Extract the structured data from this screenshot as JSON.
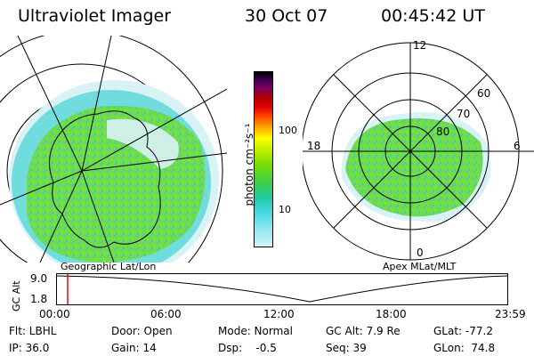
{
  "header": {
    "title": "Ultraviolet Imager",
    "date": "30 Oct 07",
    "time": "00:45:42 UT"
  },
  "left_panel": {
    "label": "Geographic Lat/Lon"
  },
  "right_panel": {
    "label": "Apex MLat/MLT",
    "mlt_labels": [
      "12",
      "6",
      "0",
      "18"
    ],
    "mlat_labels": [
      "60",
      "70",
      "80"
    ]
  },
  "colorbar": {
    "unit_label": "photon cm⁻²s⁻¹",
    "ticks": [
      "100",
      "10"
    ],
    "colors": [
      "#000000",
      "#3a0050",
      "#7a0060",
      "#b00000",
      "#e00000",
      "#ff4000",
      "#ff8c00",
      "#ffc800",
      "#ffff00",
      "#c8f000",
      "#80e000",
      "#40d040",
      "#20c8a0",
      "#40d8e0",
      "#90e8f0",
      "#d0f4f8"
    ]
  },
  "timeline": {
    "y_label": "GC Alt",
    "y_ticks": [
      "9.0",
      "1.8"
    ],
    "x_ticks": [
      "00:00",
      "06:00",
      "12:00",
      "18:00",
      "23:59"
    ],
    "marker_color": "#ff0000"
  },
  "info": {
    "flt": "Flt: LBHL",
    "ip": "IP: 36.0",
    "door": "Door: Open",
    "gain": "Gain: 14",
    "mode": "Mode: Normal",
    "dsp": "Dsp:    -0.5",
    "gcalt": "GC Alt: 7.9 Re",
    "seq": "Seq: 39",
    "glat": "GLat: -77.2",
    "glon": "GLon:  74.8"
  }
}
